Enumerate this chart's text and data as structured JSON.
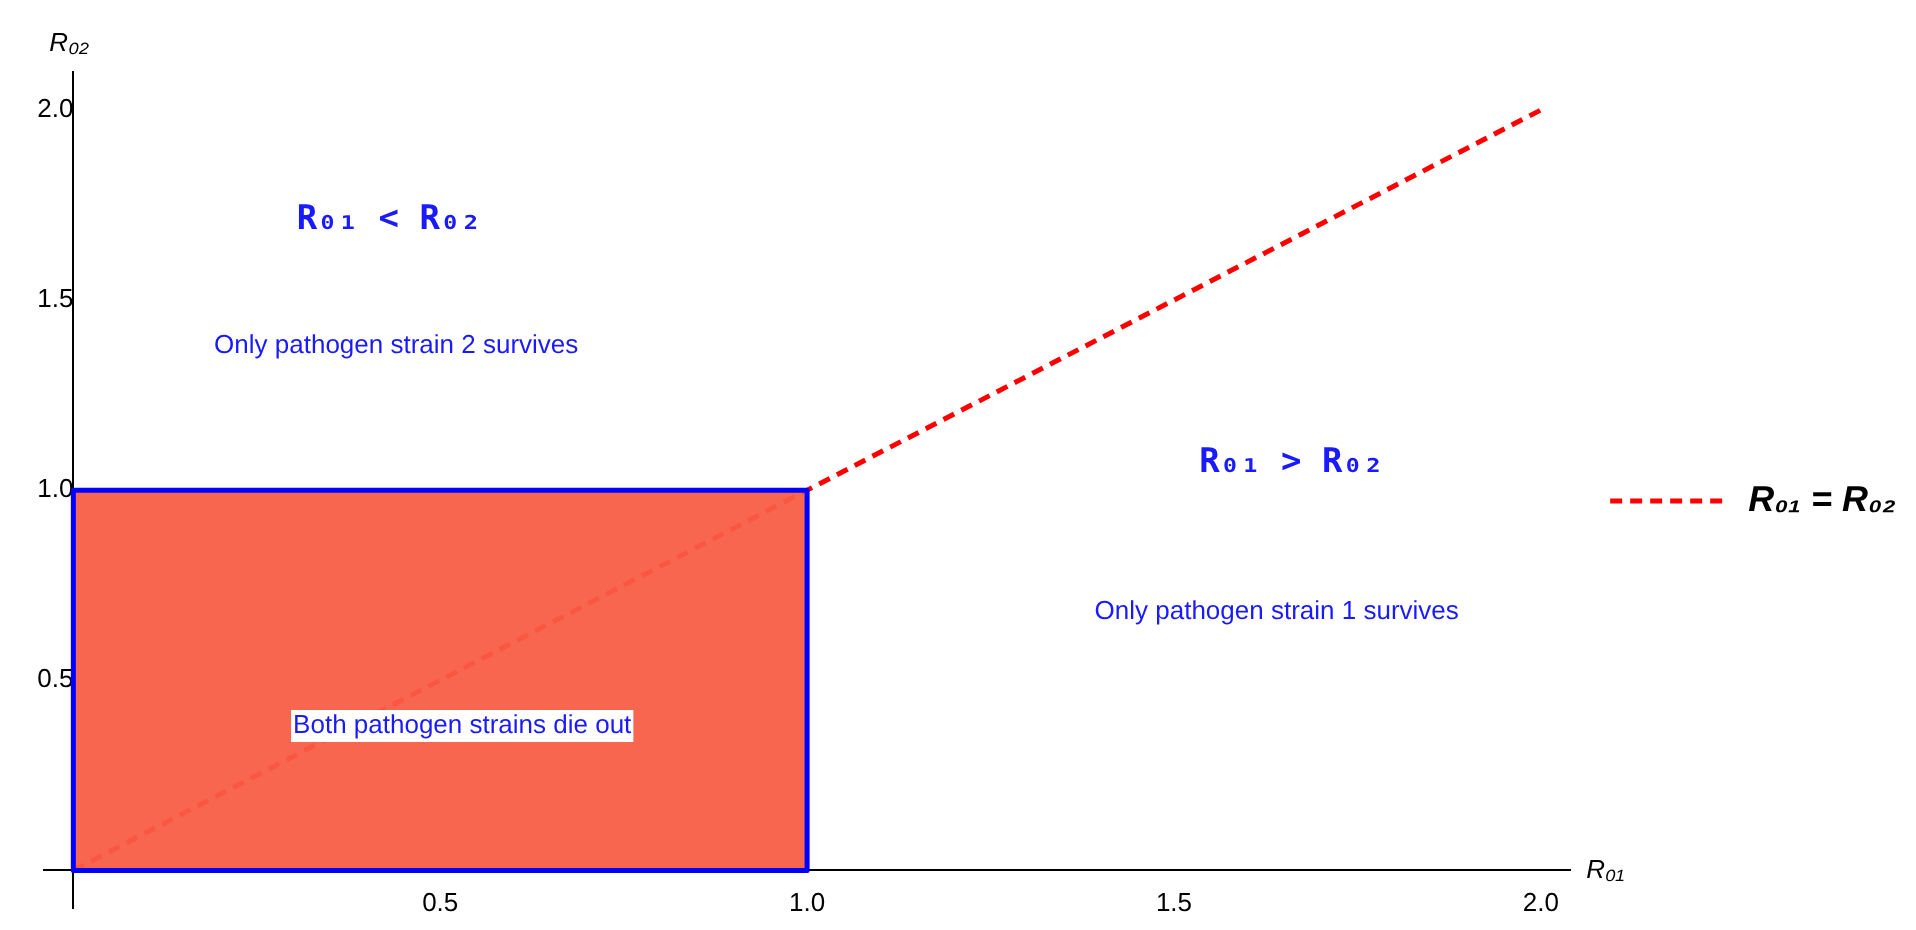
{
  "chart_data": {
    "type": "line",
    "xlabel": "R₀₁",
    "ylabel": "R₀₂",
    "xlim": [
      -0.04,
      2.04
    ],
    "ylim": [
      -0.1,
      2.1
    ],
    "xticks": [
      {
        "value": 0.5,
        "label": "0.5"
      },
      {
        "value": 1,
        "label": "1.0"
      },
      {
        "value": 1.5,
        "label": "1.5"
      },
      {
        "value": 2,
        "label": "2.0"
      }
    ],
    "yticks": [
      {
        "value": 0.5,
        "label": "0.5"
      },
      {
        "value": 1,
        "label": "1.0"
      },
      {
        "value": 1.5,
        "label": "1.5"
      },
      {
        "value": 2,
        "label": "2.0"
      }
    ],
    "grid": false,
    "legend": "right",
    "marker": "none",
    "series": [
      {
        "name": "R₀₁ = R₀₂",
        "type": "line",
        "color": "#ff0000",
        "x": [
          0,
          2
        ],
        "values": [
          0,
          2
        ],
        "line_style": "dashed"
      },
      {
        "type": "area",
        "color": "#f95c45",
        "x": [
          0,
          1
        ],
        "values": [
          1,
          1
        ]
      }
    ],
    "annotations": [
      "R₀₁ < R₀₂",
      "Only pathogen strain 2 survives",
      "R₀₁ > R₀₂",
      "Only pathogen strain 1 survives",
      "Both pathogen strains die out"
    ]
  }
}
